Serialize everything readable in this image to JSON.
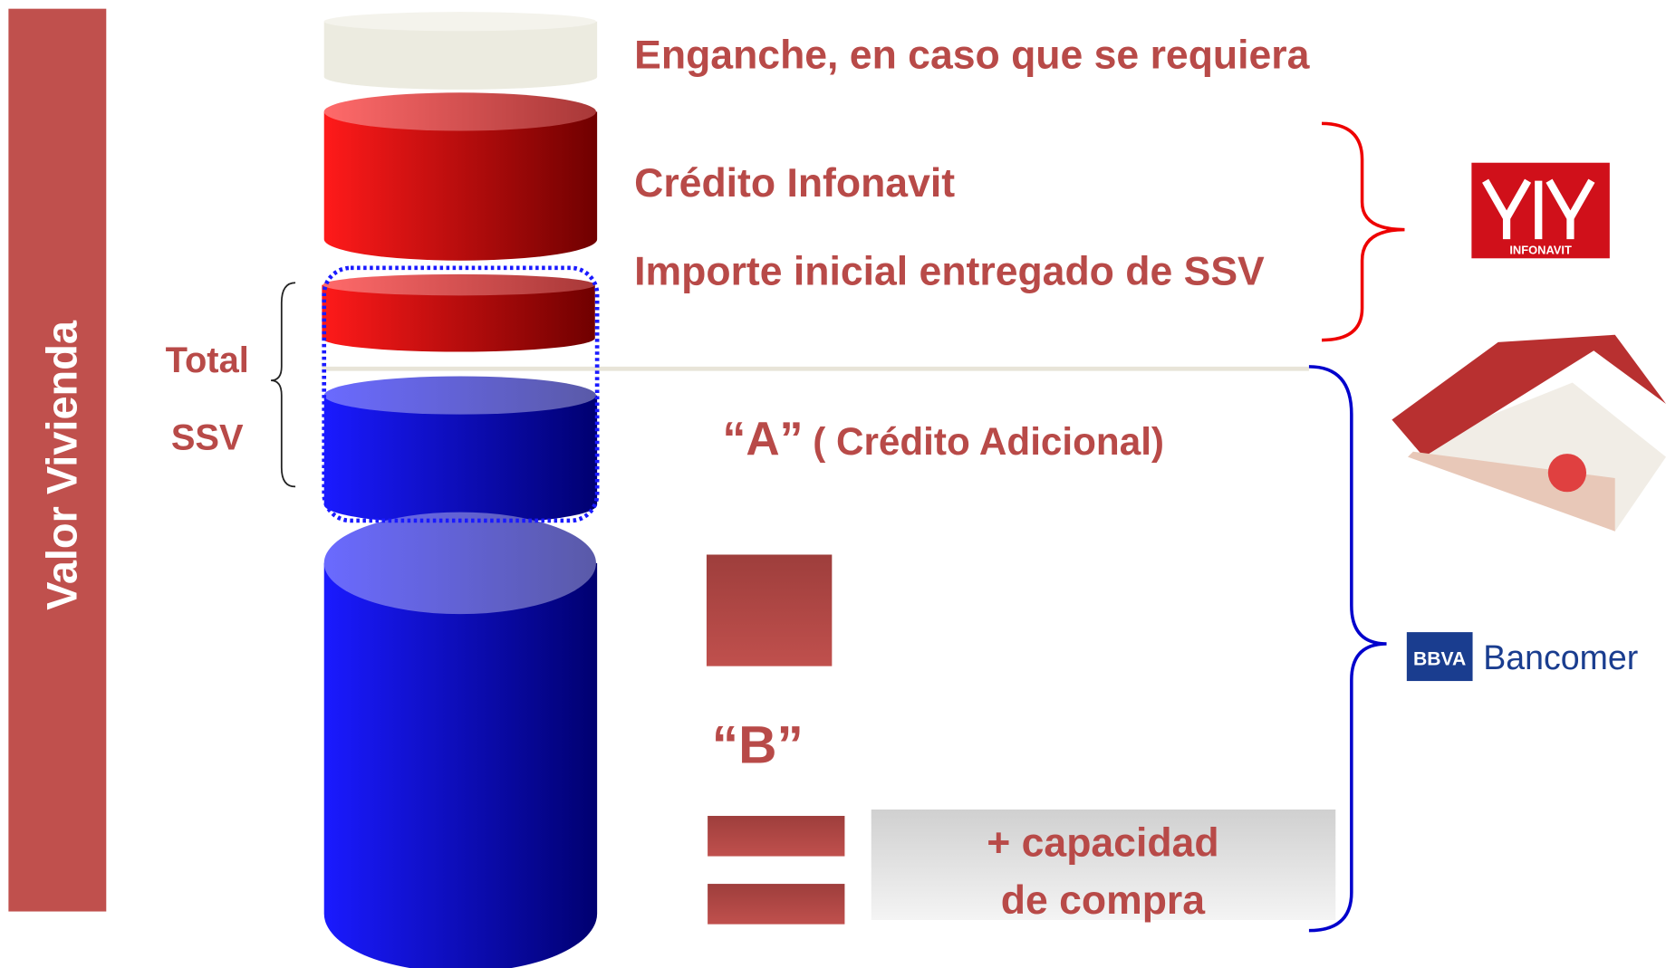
{
  "side_label": "Valor Vivienda",
  "labels": {
    "enganche": "Enganche,  en caso que se requiera",
    "credito": "Crédito Infonavit",
    "importe": "Importe inicial entregado de SSV",
    "total": "Total",
    "ssv": "SSV",
    "a": "“A”",
    "a_desc": "( Crédito Adicional)",
    "b": "“B”",
    "capacidad_1": "+ capacidad",
    "capacidad_2": "de compra"
  },
  "logos": {
    "infonavit": "INFONAVIT",
    "bbva": "BBVA",
    "bancomer": "Bancomer"
  }
}
